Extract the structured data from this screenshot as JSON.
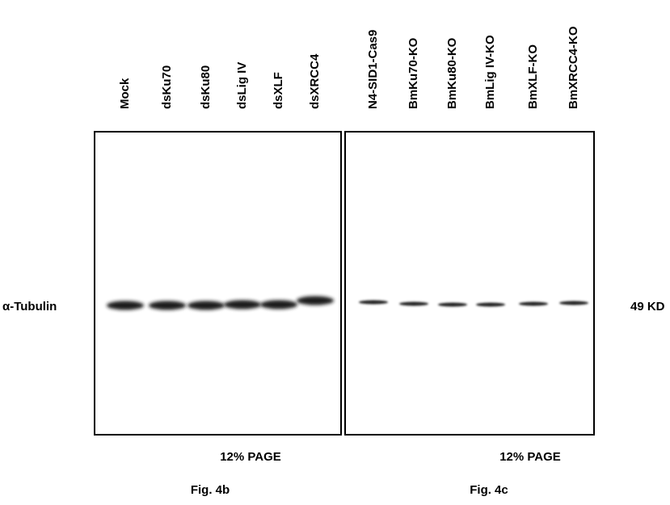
{
  "panels": [
    {
      "lanes": [
        "Mock",
        "dsKu70",
        "dsKu80",
        "dsLig IV",
        "dsXLF",
        "dsXRCC4"
      ],
      "gel": "12% PAGE",
      "caption": "Fig. 4b"
    },
    {
      "lanes": [
        "N4-SID1-Cas9",
        "BmKu70-KO",
        "BmKu80-KO",
        "BmLig IV-KO",
        "BmXLF-KO",
        "BmXRCC4-KO"
      ],
      "gel": "12% PAGE",
      "caption": "Fig. 4c"
    }
  ],
  "row_label": "α-Tubulin",
  "size_label": "49 KD"
}
